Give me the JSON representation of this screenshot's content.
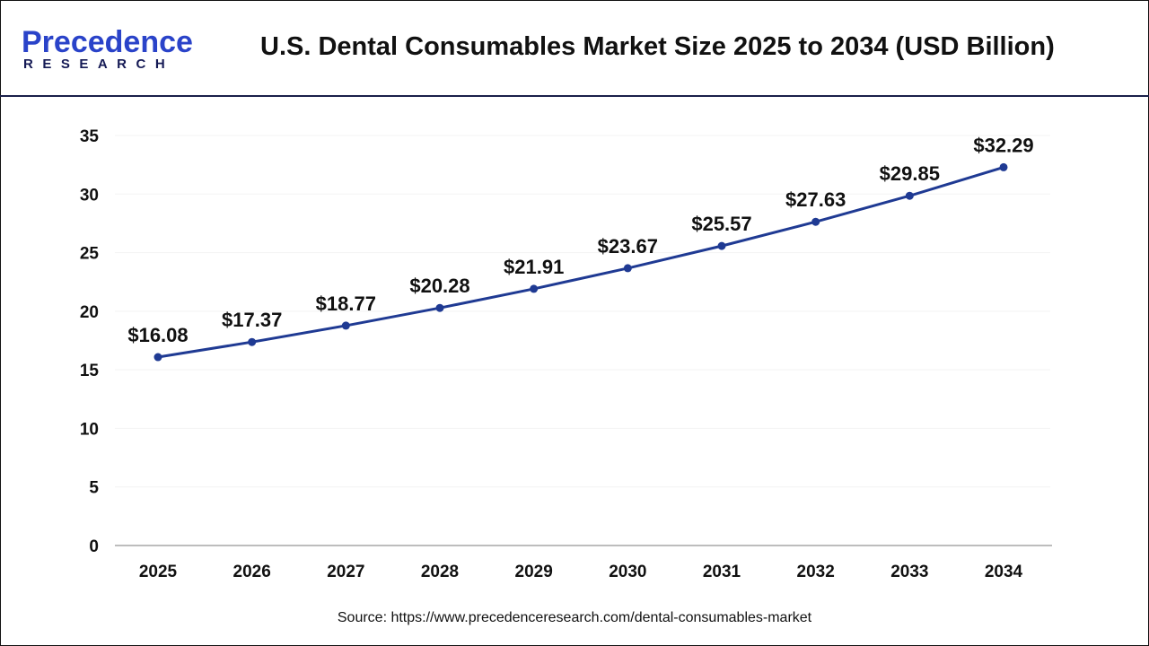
{
  "logo": {
    "line1": "Precedence",
    "line2": "RESEARCH"
  },
  "title": "U.S. Dental Consumables Market Size 2025 to 2034 (USD Billion)",
  "source": "Source: https://www.precedenceresearch.com/dental-consumables-market",
  "chart_data": {
    "type": "line",
    "title": "U.S. Dental Consumables Market Size 2025 to 2034 (USD Billion)",
    "categories": [
      "2025",
      "2026",
      "2027",
      "2028",
      "2029",
      "2030",
      "2031",
      "2032",
      "2033",
      "2034"
    ],
    "values": [
      16.08,
      17.37,
      18.77,
      20.28,
      21.91,
      23.67,
      25.57,
      27.63,
      29.85,
      32.29
    ],
    "data_labels": [
      "$16.08",
      "$17.37",
      "$18.77",
      "$20.28",
      "$21.91",
      "$23.67",
      "$25.57",
      "$27.63",
      "$29.85",
      "$32.29"
    ],
    "ylim": [
      0,
      35
    ],
    "yticks": [
      0,
      5,
      10,
      15,
      20,
      25,
      30,
      35
    ],
    "grid": true,
    "line_color": "#1f3a93"
  }
}
